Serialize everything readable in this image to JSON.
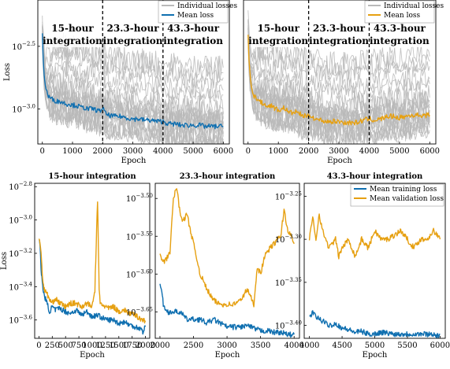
{
  "colors": {
    "individual": "#b9b9b9",
    "training": "#0f6fb0",
    "validation": "#e6a011",
    "axis": "#000000"
  },
  "chart_data": [
    {
      "type": "line",
      "panel": "top-left",
      "xlabel": "Epoch",
      "ylabel": "Loss",
      "xlim": [
        -150,
        6200
      ],
      "ylim": [
        -3.28,
        -2.13
      ],
      "yscale": "log10",
      "xticks": [
        0,
        1000,
        2000,
        3000,
        4000,
        5000,
        6000
      ],
      "ytick_labels": [
        {
          "v": -2.5,
          "label": "10^{-2.5}",
          "base": "10",
          "exp": "−2.5"
        },
        {
          "v": -3.0,
          "label": "10^{-3.0}",
          "base": "10",
          "exp": "−3.0"
        }
      ],
      "phase_boundaries": [
        2000,
        4000
      ],
      "phase_labels": [
        {
          "x_range": [
            0,
            2000
          ],
          "lines": [
            "15-hour",
            "integration"
          ]
        },
        {
          "x_range": [
            2000,
            4000
          ],
          "lines": [
            "23.3-hour",
            "integration"
          ]
        },
        {
          "x_range": [
            4000,
            6000
          ],
          "lines": [
            "43.3-hour",
            "integration"
          ]
        }
      ],
      "legend": {
        "placement": "top-right",
        "entries": [
          {
            "label": "Individual losses",
            "color": "#b9b9b9"
          },
          {
            "label": "Mean loss",
            "color": "#0f6fb0"
          }
        ]
      },
      "series": [
        {
          "name": "Mean loss",
          "color": "#0f6fb0",
          "x": [
            0,
            30,
            60,
            100,
            150,
            200,
            300,
            400,
            500,
            600,
            700,
            800,
            900,
            1000,
            1100,
            1200,
            1300,
            1400,
            1500,
            1600,
            1700,
            1800,
            1900,
            2000,
            2100,
            2200,
            2400,
            2600,
            2800,
            3000,
            3200,
            3400,
            3600,
            3800,
            4000,
            4200,
            4400,
            4600,
            4800,
            5000,
            5200,
            5400,
            5600,
            5800,
            6000
          ],
          "y": [
            -2.4,
            -2.6,
            -2.72,
            -2.82,
            -2.86,
            -2.9,
            -2.92,
            -2.93,
            -2.94,
            -2.94,
            -2.95,
            -2.96,
            -2.96,
            -2.97,
            -2.97,
            -2.98,
            -2.99,
            -2.99,
            -3.0,
            -3.0,
            -3.0,
            -3.01,
            -3.02,
            -2.99,
            -3.04,
            -3.05,
            -3.06,
            -3.06,
            -3.07,
            -3.08,
            -3.08,
            -3.09,
            -3.09,
            -3.1,
            -3.1,
            -3.12,
            -3.12,
            -3.13,
            -3.13,
            -3.13,
            -3.13,
            -3.14,
            -3.14,
            -3.14,
            -3.14
          ]
        }
      ],
      "individual_series_count": 20
    },
    {
      "type": "line",
      "panel": "top-right",
      "xlabel": "Epoch",
      "ylabel": "",
      "xlim": [
        -150,
        6200
      ],
      "ylim": [
        -3.28,
        -2.13
      ],
      "yscale": "log10",
      "xticks": [
        0,
        1000,
        2000,
        3000,
        4000,
        5000,
        6000
      ],
      "phase_boundaries": [
        2000,
        4000
      ],
      "phase_labels": [
        {
          "x_range": [
            0,
            2000
          ],
          "lines": [
            "15-hour",
            "integration"
          ]
        },
        {
          "x_range": [
            2000,
            4000
          ],
          "lines": [
            "23.3-hour",
            "integration"
          ]
        },
        {
          "x_range": [
            4000,
            6000
          ],
          "lines": [
            "43.3-hour",
            "integration"
          ]
        }
      ],
      "legend": {
        "placement": "top-right",
        "entries": [
          {
            "label": "Individual losses",
            "color": "#b9b9b9"
          },
          {
            "label": "Mean loss",
            "color": "#e6a011"
          }
        ]
      },
      "series": [
        {
          "name": "Mean loss",
          "color": "#e6a011",
          "x": [
            0,
            30,
            60,
            100,
            150,
            200,
            300,
            400,
            500,
            600,
            700,
            800,
            900,
            1000,
            1100,
            1200,
            1300,
            1400,
            1500,
            1600,
            1700,
            1800,
            1900,
            2000,
            2100,
            2200,
            2400,
            2600,
            2800,
            3000,
            3200,
            3400,
            3600,
            3800,
            4000,
            4200,
            4400,
            4600,
            4800,
            5000,
            5200,
            5400,
            5600,
            5800,
            6000
          ],
          "y": [
            -2.4,
            -2.6,
            -2.72,
            -2.8,
            -2.85,
            -2.9,
            -2.92,
            -2.94,
            -2.96,
            -2.97,
            -2.98,
            -2.97,
            -3.0,
            -3.01,
            -3.0,
            -2.99,
            -3.02,
            -3.03,
            -3.03,
            -3.02,
            -3.04,
            -3.05,
            -3.06,
            -3.06,
            -3.05,
            -3.08,
            -3.09,
            -3.1,
            -3.1,
            -3.1,
            -3.11,
            -3.11,
            -3.11,
            -3.09,
            -3.08,
            -3.09,
            -3.08,
            -3.06,
            -3.06,
            -3.07,
            -3.06,
            -3.05,
            -3.05,
            -3.05,
            -3.05
          ]
        }
      ],
      "individual_series_count": 20
    },
    {
      "type": "line",
      "panel": "bottom-left",
      "title": "15-hour integration",
      "xlabel": "Epoch",
      "ylabel": "Loss",
      "xlim": [
        -80,
        2080
      ],
      "ylim": [
        -3.71,
        -2.78
      ],
      "yscale": "log10",
      "xticks": [
        0,
        250,
        500,
        750,
        1000,
        1250,
        1500,
        1750,
        2000
      ],
      "ytick_labels": [
        {
          "v": -2.8,
          "label": "10^{-2.8}",
          "base": "10",
          "exp": "−2.8"
        },
        {
          "v": -3.0,
          "label": "10^{-3.0}",
          "base": "10",
          "exp": "−3.0"
        },
        {
          "v": -3.2,
          "label": "10^{-3.2}",
          "base": "10",
          "exp": "−3.2"
        },
        {
          "v": -3.4,
          "label": "10^{-3.4}",
          "base": "10",
          "exp": "−3.4"
        },
        {
          "v": -3.6,
          "label": "10^{-3.6}",
          "base": "10",
          "exp": "−3.6"
        }
      ],
      "series": [
        {
          "name": "Mean training loss",
          "color": "#0f6fb0",
          "x": [
            0,
            20,
            40,
            70,
            100,
            150,
            200,
            250,
            300,
            400,
            500,
            600,
            700,
            800,
            900,
            1000,
            1100,
            1200,
            1300,
            1400,
            1500,
            1600,
            1700,
            1800,
            1900,
            1950,
            2000
          ],
          "y": [
            -3.11,
            -3.14,
            -3.3,
            -3.4,
            -3.45,
            -3.5,
            -3.55,
            -3.52,
            -3.54,
            -3.53,
            -3.55,
            -3.56,
            -3.54,
            -3.57,
            -3.55,
            -3.58,
            -3.57,
            -3.59,
            -3.6,
            -3.6,
            -3.62,
            -3.61,
            -3.63,
            -3.64,
            -3.65,
            -3.67,
            -3.64
          ]
        },
        {
          "name": "Mean validation loss",
          "color": "#e6a011",
          "x": [
            0,
            20,
            40,
            70,
            100,
            150,
            200,
            250,
            300,
            400,
            500,
            600,
            700,
            800,
            900,
            1000,
            1050,
            1100,
            1130,
            1150,
            1200,
            1300,
            1400,
            1500,
            1600,
            1700,
            1800,
            1900,
            2000
          ],
          "y": [
            -3.11,
            -3.13,
            -3.2,
            -3.35,
            -3.42,
            -3.44,
            -3.48,
            -3.5,
            -3.47,
            -3.5,
            -3.52,
            -3.5,
            -3.5,
            -3.52,
            -3.5,
            -3.52,
            -3.42,
            -2.88,
            -3.42,
            -3.5,
            -3.51,
            -3.53,
            -3.52,
            -3.55,
            -3.54,
            -3.56,
            -3.57,
            -3.59,
            -3.61
          ]
        }
      ]
    },
    {
      "type": "line",
      "panel": "bottom-middle",
      "title": "23.3-hour integration",
      "xlabel": "Epoch",
      "ylabel": "",
      "xlim": [
        1930,
        4080
      ],
      "ylim": [
        -3.685,
        -3.48
      ],
      "yscale": "log10",
      "xticks": [
        2000,
        2500,
        3000,
        3500,
        4000
      ],
      "ytick_labels": [
        {
          "v": -3.5,
          "label": "10^{-3.50}",
          "base": "10",
          "exp": "−3.50"
        },
        {
          "v": -3.55,
          "label": "10^{-3.55}",
          "base": "10",
          "exp": "−3.55"
        },
        {
          "v": -3.6,
          "label": "10^{-3.60}",
          "base": "10",
          "exp": "−3.60"
        },
        {
          "v": -3.65,
          "label": "10^{-3.65}",
          "base": "10",
          "exp": "−3.65"
        }
      ],
      "series": [
        {
          "name": "Mean training loss",
          "color": "#0f6fb0",
          "x": [
            2000,
            2020,
            2050,
            2100,
            2200,
            2300,
            2400,
            2500,
            2600,
            2700,
            2800,
            2900,
            3000,
            3100,
            3200,
            3300,
            3400,
            3500,
            3600,
            3700,
            3800,
            3900,
            4000
          ],
          "y": [
            -3.61,
            -3.62,
            -3.64,
            -3.65,
            -3.65,
            -3.65,
            -3.66,
            -3.66,
            -3.66,
            -3.665,
            -3.66,
            -3.665,
            -3.67,
            -3.67,
            -3.67,
            -3.668,
            -3.672,
            -3.675,
            -3.675,
            -3.677,
            -3.677,
            -3.68,
            -3.68
          ]
        },
        {
          "name": "Mean validation loss",
          "color": "#e6a011",
          "x": [
            2000,
            2050,
            2100,
            2150,
            2200,
            2250,
            2300,
            2350,
            2400,
            2450,
            2500,
            2600,
            2700,
            2800,
            2900,
            3000,
            3100,
            3200,
            3300,
            3400,
            3450,
            3500,
            3550,
            3600,
            3700,
            3800,
            3850,
            3900,
            4000
          ],
          "y": [
            -3.575,
            -3.585,
            -3.58,
            -3.57,
            -3.5,
            -3.485,
            -3.52,
            -3.53,
            -3.52,
            -3.54,
            -3.56,
            -3.6,
            -3.62,
            -3.635,
            -3.64,
            -3.64,
            -3.64,
            -3.635,
            -3.62,
            -3.64,
            -3.59,
            -3.6,
            -3.58,
            -3.57,
            -3.56,
            -3.55,
            -3.515,
            -3.54,
            -3.56
          ]
        }
      ]
    },
    {
      "type": "line",
      "panel": "bottom-right",
      "title": "43.3-hour integration",
      "xlabel": "Epoch",
      "ylabel": "",
      "xlim": [
        3920,
        6080
      ],
      "ylim": [
        -3.415,
        -3.235
      ],
      "yscale": "log10",
      "xticks": [
        4000,
        4500,
        5000,
        5500,
        6000
      ],
      "ytick_labels": [
        {
          "v": -3.25,
          "label": "10^{-3.25}",
          "base": "10",
          "exp": "−3.25"
        },
        {
          "v": -3.3,
          "label": "10^{-3.30}",
          "base": "10",
          "exp": "−3.30"
        },
        {
          "v": -3.35,
          "label": "10^{-3.35}",
          "base": "10",
          "exp": "−3.35"
        },
        {
          "v": -3.4,
          "label": "10^{-3.40}",
          "base": "10",
          "exp": "−3.40"
        }
      ],
      "legend": {
        "placement": "top-right",
        "entries": [
          {
            "label": "Mean training loss",
            "color": "#0f6fb0"
          },
          {
            "label": "Mean validation loss",
            "color": "#e6a011"
          }
        ]
      },
      "series": [
        {
          "name": "Mean training loss",
          "color": "#0f6fb0",
          "x": [
            4000,
            4050,
            4100,
            4200,
            4300,
            4400,
            4500,
            4600,
            4700,
            4800,
            4900,
            5000,
            5100,
            5200,
            5300,
            5400,
            5500,
            5600,
            5700,
            5800,
            5900,
            5950,
            6000
          ],
          "y": [
            -3.39,
            -3.385,
            -3.39,
            -3.395,
            -3.4,
            -3.398,
            -3.403,
            -3.405,
            -3.408,
            -3.407,
            -3.41,
            -3.41,
            -3.408,
            -3.409,
            -3.41,
            -3.41,
            -3.41,
            -3.41,
            -3.41,
            -3.41,
            -3.41,
            -3.413,
            -3.41
          ]
        },
        {
          "name": "Mean validation loss",
          "color": "#e6a011",
          "x": [
            4000,
            4050,
            4100,
            4150,
            4200,
            4300,
            4400,
            4450,
            4500,
            4600,
            4700,
            4800,
            4900,
            5000,
            5100,
            5200,
            5300,
            5400,
            5500,
            5600,
            5700,
            5800,
            5900,
            6000
          ],
          "y": [
            -3.3,
            -3.275,
            -3.3,
            -3.27,
            -3.29,
            -3.31,
            -3.3,
            -3.32,
            -3.31,
            -3.3,
            -3.32,
            -3.3,
            -3.31,
            -3.29,
            -3.3,
            -3.3,
            -3.295,
            -3.29,
            -3.3,
            -3.31,
            -3.3,
            -3.3,
            -3.29,
            -3.3
          ]
        }
      ]
    }
  ]
}
